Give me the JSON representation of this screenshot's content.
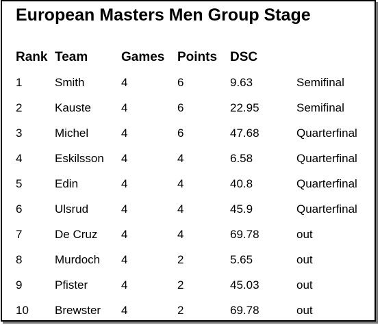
{
  "title": "European Masters Men Group Stage",
  "columns": {
    "rank": "Rank",
    "team": "Team",
    "games": "Games",
    "points": "Points",
    "dsc": "DSC",
    "result": ""
  },
  "rows": [
    {
      "rank": "1",
      "team": "Smith",
      "games": "4",
      "points": "6",
      "dsc": "9.63",
      "result": "Semifinal"
    },
    {
      "rank": "2",
      "team": "Kauste",
      "games": "4",
      "points": "6",
      "dsc": "22.95",
      "result": "Semifinal"
    },
    {
      "rank": "3",
      "team": "Michel",
      "games": "4",
      "points": "6",
      "dsc": "47.68",
      "result": "Quarterfinal"
    },
    {
      "rank": "4",
      "team": "Eskilsson",
      "games": "4",
      "points": "4",
      "dsc": "6.58",
      "result": "Quarterfinal"
    },
    {
      "rank": "5",
      "team": "Edin",
      "games": "4",
      "points": "4",
      "dsc": "40.8",
      "result": "Quarterfinal"
    },
    {
      "rank": "6",
      "team": "Ulsrud",
      "games": "4",
      "points": "4",
      "dsc": "45.9",
      "result": "Quarterfinal"
    },
    {
      "rank": "7",
      "team": "De Cruz",
      "games": "4",
      "points": "4",
      "dsc": "69.78",
      "result": "out"
    },
    {
      "rank": "8",
      "team": "Murdoch",
      "games": "4",
      "points": "2",
      "dsc": "5.65",
      "result": "out"
    },
    {
      "rank": "9",
      "team": "Pfister",
      "games": "4",
      "points": "2",
      "dsc": "45.03",
      "result": "out"
    },
    {
      "rank": "10",
      "team": "Brewster",
      "games": "4",
      "points": "2",
      "dsc": "69.78",
      "result": "out"
    }
  ]
}
